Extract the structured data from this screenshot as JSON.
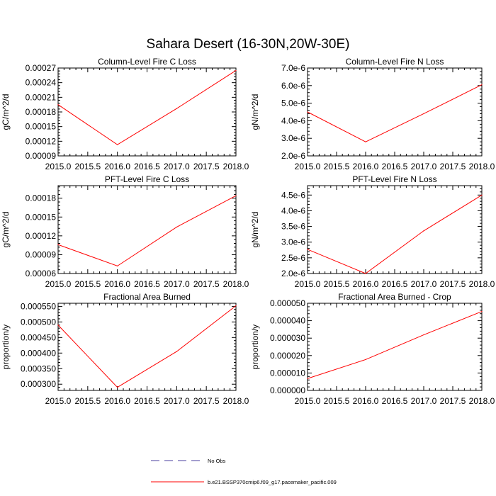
{
  "figure": {
    "title": "Sahara Desert (16-30N,20W-30E)"
  },
  "legend": {
    "obs_label": "No Obs",
    "obs_color": "#4a3f9f",
    "model_label": "b.e21.BSSP370cmip6.f09_g17.pacemaker_pacific.009",
    "model_color": "#ff0000"
  },
  "chart_data": [
    {
      "type": "line",
      "title": "Column-Level Fire C Loss",
      "ylabel": "gC/m^2/d",
      "xlim": [
        2015.0,
        2018.0
      ],
      "ylim": [
        9e-05,
        0.00027
      ],
      "x_ticks": [
        "2015.0",
        "2015.5",
        "2016.0",
        "2016.5",
        "2017.0",
        "2017.5",
        "2018.0"
      ],
      "y_ticks": [
        "0.00009",
        "0.00012",
        "0.00015",
        "0.00018",
        "0.00021",
        "0.00024",
        "0.00027"
      ],
      "series": [
        {
          "color": "#ff0000",
          "x": [
            2015.0,
            2016.0,
            2017.0,
            2018.0
          ],
          "y": [
            0.000195,
            0.000113,
            0.000187,
            0.000265
          ]
        }
      ]
    },
    {
      "type": "line",
      "title": "Column-Level Fire N Loss",
      "ylabel": "gN/m^2/d",
      "xlim": [
        2015.0,
        2018.0
      ],
      "ylim": [
        2e-06,
        7e-06
      ],
      "x_ticks": [
        "2015.0",
        "2015.5",
        "2016.0",
        "2016.5",
        "2017.0",
        "2017.5",
        "2018.0"
      ],
      "y_ticks": [
        "2.0e-6",
        "3.0e-6",
        "4.0e-6",
        "5.0e-6",
        "6.0e-6",
        "7.0e-6"
      ],
      "series": [
        {
          "color": "#ff0000",
          "x": [
            2015.0,
            2016.0,
            2017.0,
            2018.0
          ],
          "y": [
            4.5e-06,
            2.8e-06,
            4.4e-06,
            6.05e-06
          ]
        }
      ]
    },
    {
      "type": "line",
      "title": "PFT-Level Fire C Loss",
      "ylabel": "gC/m^2/d",
      "xlim": [
        2015.0,
        2018.0
      ],
      "ylim": [
        6e-05,
        0.0002
      ],
      "x_ticks": [
        "2015.0",
        "2015.5",
        "2016.0",
        "2016.5",
        "2017.0",
        "2017.5",
        "2018.0"
      ],
      "y_ticks": [
        "0.00006",
        "0.00009",
        "0.00012",
        "0.00015",
        "0.00018"
      ],
      "series": [
        {
          "color": "#ff0000",
          "x": [
            2015.0,
            2016.0,
            2017.0,
            2018.0
          ],
          "y": [
            0.000106,
            7.2e-05,
            0.000134,
            0.000184
          ]
        }
      ]
    },
    {
      "type": "line",
      "title": "PFT-Level Fire N Loss",
      "ylabel": "gN/m^2/d",
      "xlim": [
        2015.0,
        2018.0
      ],
      "ylim": [
        2e-06,
        4.8e-06
      ],
      "x_ticks": [
        "2015.0",
        "2015.5",
        "2016.0",
        "2016.5",
        "2017.0",
        "2017.5",
        "2018.0"
      ],
      "y_ticks": [
        "2.0e-6",
        "2.5e-6",
        "3.0e-6",
        "3.5e-6",
        "4.0e-6",
        "4.5e-6"
      ],
      "series": [
        {
          "color": "#ff0000",
          "x": [
            2015.0,
            2016.0,
            2017.0,
            2018.0
          ],
          "y": [
            2.77e-06,
            2e-06,
            3.36e-06,
            4.5e-06
          ]
        }
      ]
    },
    {
      "type": "line",
      "title": "Fractional Area Burned",
      "ylabel": "proportion/y",
      "xlim": [
        2015.0,
        2018.0
      ],
      "ylim": [
        0.00028,
        0.00056
      ],
      "x_ticks": [
        "2015.0",
        "2015.5",
        "2016.0",
        "2016.5",
        "2017.0",
        "2017.5",
        "2018.0"
      ],
      "y_ticks": [
        "0.000300",
        "0.000350",
        "0.000400",
        "0.000450",
        "0.000500",
        "0.000550"
      ],
      "series": [
        {
          "color": "#ff0000",
          "x": [
            2015.0,
            2016.0,
            2017.0,
            2018.0
          ],
          "y": [
            0.00049,
            0.00029,
            0.000405,
            0.000552
          ]
        }
      ]
    },
    {
      "type": "line",
      "title": "Fractional Area Burned - Crop",
      "ylabel": "proportion/y",
      "xlim": [
        2015.0,
        2018.0
      ],
      "ylim": [
        0.0,
        5e-05
      ],
      "x_ticks": [
        "2015.0",
        "2015.5",
        "2016.0",
        "2016.5",
        "2017.0",
        "2017.5",
        "2018.0"
      ],
      "y_ticks": [
        "0.000000",
        "0.000010",
        "0.000020",
        "0.000030",
        "0.000040",
        "0.000050"
      ],
      "series": [
        {
          "color": "#ff0000",
          "x": [
            2015.0,
            2016.0,
            2017.0,
            2018.0
          ],
          "y": [
            6.8e-06,
            1.77e-05,
            3.19e-05,
            4.53e-05
          ]
        }
      ]
    }
  ]
}
